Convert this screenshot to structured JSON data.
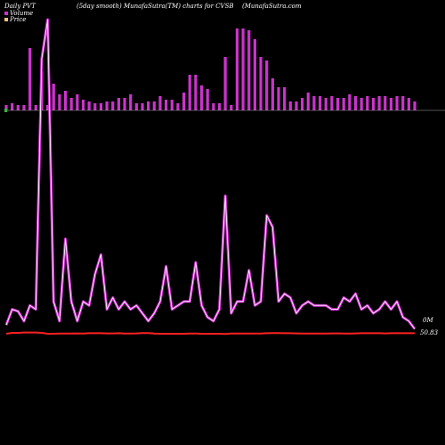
{
  "header": {
    "left": "Daily PVT",
    "middle": "(5day smooth) MunafaSutra(TM) charts for CVSB",
    "right": "(MunafaSutra.com"
  },
  "legend": [
    {
      "label": "Volume",
      "color": "#cc33cc"
    },
    {
      "label": "Price",
      "color": "#f0c080"
    }
  ],
  "right_labels": {
    "volume": "0M",
    "price": "50.83"
  },
  "colors": {
    "background": "#000000",
    "volume_bar": "#cc33cc",
    "pvt_line_outer": "#cc33cc",
    "pvt_line_inner": "#ffffff",
    "price_line": "#ff2020",
    "baseline": "#aaaaaa"
  },
  "chart_data": {
    "type": "bar",
    "series": [
      {
        "values": [
          6,
          8,
          6,
          6,
          70,
          6,
          44,
          6,
          30,
          18,
          22,
          14,
          18,
          12,
          10,
          8,
          8,
          10,
          10,
          14,
          14,
          18,
          8,
          8,
          10,
          10,
          16,
          12,
          12,
          8,
          20,
          40,
          40,
          28,
          24,
          8,
          8,
          60,
          6,
          92,
          92,
          90,
          80,
          60,
          56,
          36,
          26,
          26,
          10,
          10,
          14,
          20,
          16,
          16,
          14,
          16,
          14,
          14,
          18,
          16,
          14,
          16,
          14,
          16,
          16,
          14,
          16,
          16,
          14,
          10
        ]
      },
      {
        "values": [
          4,
          12,
          11,
          6,
          14,
          12,
          140,
          160,
          16,
          6,
          48,
          16,
          6,
          16,
          14,
          30,
          40,
          12,
          18,
          12,
          16,
          12,
          14,
          10,
          6,
          10,
          16,
          34,
          12,
          14,
          16,
          16,
          36,
          14,
          8,
          6,
          12,
          70,
          10,
          16,
          16,
          32,
          14,
          16,
          60,
          54,
          16,
          20,
          18,
          10,
          14,
          16,
          14,
          14,
          14,
          12,
          12,
          18,
          16,
          20,
          12,
          14,
          10,
          12,
          16,
          12,
          16,
          8,
          6,
          2
        ]
      },
      {
        "values": [
          0.5,
          1,
          1,
          1.2,
          1.2,
          1.2,
          1,
          0.5,
          0.5,
          0.6,
          0.6,
          0.6,
          0.7,
          0.6,
          0.8,
          0.8,
          0.8,
          0.7,
          0.7,
          0.8,
          0.6,
          0.6,
          0.7,
          0.9,
          0.9,
          0.6,
          0.5,
          0.5,
          0.5,
          0.5,
          0.5,
          0.6,
          0.6,
          0.5,
          0.5,
          0.5,
          0.5,
          0.4,
          0.6,
          0.6,
          0.6,
          0.6,
          0.6,
          0.6,
          0.8,
          0.9,
          0.9,
          0.8,
          0.8,
          0.7,
          0.6,
          0.6,
          0.6,
          0.6,
          0.6,
          0.7,
          0.7,
          0.6,
          0.6,
          0.7,
          0.8,
          0.8,
          0.8,
          0.8,
          0.7,
          0.8,
          0.8,
          0.8,
          0.8,
          0.8
        ]
      }
    ]
  }
}
